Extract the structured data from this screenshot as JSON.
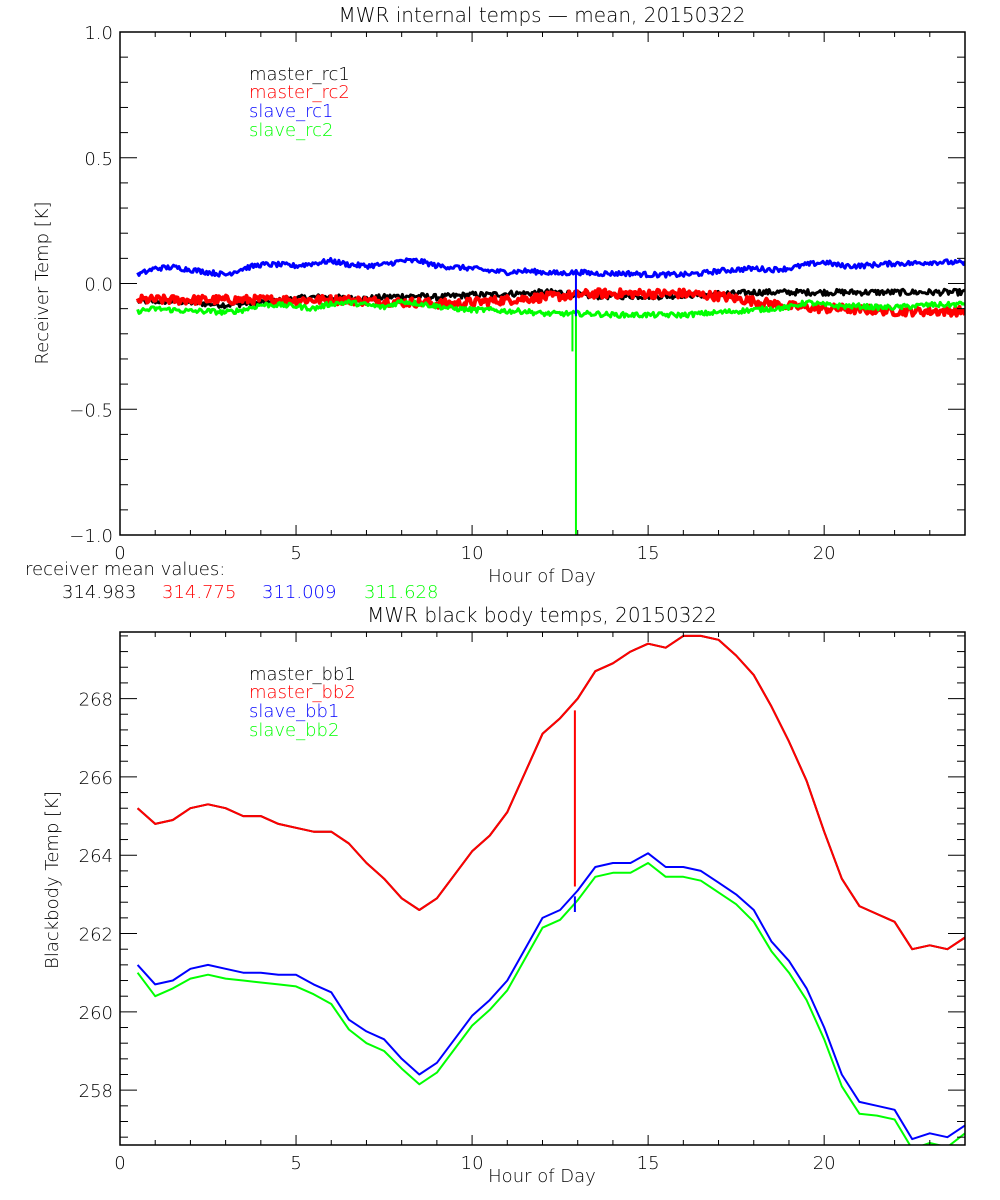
{
  "chart_data": [
    {
      "type": "line",
      "title": "MWR internal temps — mean, 20150322",
      "xlabel": "Hour of Day",
      "ylabel": "Receiver Temp [K]",
      "xlim": [
        0,
        24
      ],
      "ylim": [
        -1.0,
        1.0
      ],
      "xticks": [
        0,
        5,
        10,
        15,
        20
      ],
      "xtick_labels": [
        "0",
        "5",
        "10",
        "15",
        "20"
      ],
      "yticks": [
        -1.0,
        -0.5,
        0.0,
        0.5,
        1.0
      ],
      "ytick_labels": [
        "−1.0",
        "−0.5",
        "0.0",
        "0.5",
        "1.0"
      ],
      "grid": false,
      "legend_position": "top-left",
      "noisy": true,
      "x": [
        0.5,
        1.0,
        1.5,
        2.0,
        2.5,
        3.0,
        3.5,
        4.0,
        4.5,
        5.0,
        5.5,
        6.0,
        6.5,
        7.0,
        7.5,
        8.0,
        8.5,
        9.0,
        9.5,
        10.0,
        10.5,
        11.0,
        11.5,
        12.0,
        12.5,
        13.0,
        13.5,
        14.0,
        14.5,
        15.0,
        15.5,
        16.0,
        16.5,
        17.0,
        17.5,
        18.0,
        18.5,
        19.0,
        19.5,
        20.0,
        20.5,
        21.0,
        21.5,
        22.0,
        22.5,
        23.0,
        23.5,
        24.0
      ],
      "series": [
        {
          "name": "master_rc1",
          "color": "#000000",
          "values": [
            -0.07,
            -0.07,
            -0.07,
            -0.075,
            -0.08,
            -0.085,
            -0.08,
            -0.075,
            -0.07,
            -0.06,
            -0.055,
            -0.055,
            -0.06,
            -0.06,
            -0.055,
            -0.05,
            -0.05,
            -0.055,
            -0.05,
            -0.045,
            -0.045,
            -0.04,
            -0.04,
            -0.035,
            -0.035,
            -0.045,
            -0.05,
            -0.05,
            -0.05,
            -0.05,
            -0.05,
            -0.045,
            -0.045,
            -0.04,
            -0.04,
            -0.035,
            -0.035,
            -0.035,
            -0.035,
            -0.035,
            -0.035,
            -0.035,
            -0.035,
            -0.035,
            -0.035,
            -0.035,
            -0.035,
            -0.035
          ]
        },
        {
          "name": "master_rc2",
          "color": "#ff0000",
          "values": [
            -0.065,
            -0.065,
            -0.065,
            -0.065,
            -0.065,
            -0.065,
            -0.065,
            -0.065,
            -0.065,
            -0.065,
            -0.065,
            -0.065,
            -0.065,
            -0.07,
            -0.07,
            -0.075,
            -0.075,
            -0.08,
            -0.08,
            -0.075,
            -0.07,
            -0.065,
            -0.06,
            -0.055,
            -0.05,
            -0.045,
            -0.04,
            -0.04,
            -0.04,
            -0.04,
            -0.04,
            -0.04,
            -0.045,
            -0.05,
            -0.06,
            -0.07,
            -0.08,
            -0.09,
            -0.095,
            -0.1,
            -0.1,
            -0.105,
            -0.105,
            -0.11,
            -0.11,
            -0.11,
            -0.11,
            -0.11
          ]
        },
        {
          "name": "slave_rc1",
          "color": "#0000ff",
          "values": [
            0.035,
            0.06,
            0.065,
            0.055,
            0.045,
            0.035,
            0.06,
            0.075,
            0.075,
            0.07,
            0.08,
            0.09,
            0.075,
            0.07,
            0.075,
            0.09,
            0.09,
            0.07,
            0.065,
            0.06,
            0.05,
            0.045,
            0.05,
            0.045,
            0.04,
            0.045,
            0.04,
            0.04,
            0.04,
            0.035,
            0.035,
            0.035,
            0.04,
            0.05,
            0.055,
            0.06,
            0.055,
            0.06,
            0.075,
            0.085,
            0.07,
            0.07,
            0.075,
            0.08,
            0.08,
            0.085,
            0.085,
            0.08
          ]
        },
        {
          "name": "slave_rc2",
          "color": "#00ff00",
          "values": [
            -0.11,
            -0.1,
            -0.105,
            -0.11,
            -0.11,
            -0.115,
            -0.105,
            -0.085,
            -0.085,
            -0.09,
            -0.1,
            -0.08,
            -0.075,
            -0.085,
            -0.095,
            -0.07,
            -0.08,
            -0.09,
            -0.1,
            -0.105,
            -0.105,
            -0.11,
            -0.11,
            -0.12,
            -0.12,
            -0.12,
            -0.12,
            -0.125,
            -0.125,
            -0.125,
            -0.125,
            -0.125,
            -0.12,
            -0.115,
            -0.11,
            -0.105,
            -0.1,
            -0.095,
            -0.075,
            -0.085,
            -0.09,
            -0.09,
            -0.095,
            -0.095,
            -0.09,
            -0.085,
            -0.085,
            -0.08
          ]
        }
      ],
      "spikes": [
        {
          "series": "slave_rc2",
          "x": 12.85,
          "to": -0.27
        },
        {
          "series": "slave_rc2",
          "x": 12.95,
          "to": -1.0
        },
        {
          "series": "slave_rc1",
          "x": 12.95,
          "to": -0.13
        }
      ],
      "footer": {
        "label": "receiver mean values:",
        "values": [
          {
            "series": "master_rc1",
            "value": "314.983",
            "color": "#000000"
          },
          {
            "series": "master_rc2",
            "value": "314.775",
            "color": "#ff0000"
          },
          {
            "series": "slave_rc1",
            "value": "311.009",
            "color": "#0000ff"
          },
          {
            "series": "slave_rc2",
            "value": "311.628",
            "color": "#00ff00"
          }
        ]
      }
    },
    {
      "type": "line",
      "title": "MWR black body temps, 20150322",
      "xlabel": "Hour of Day",
      "ylabel": "Blackbody Temp [K]",
      "xlim": [
        0,
        24
      ],
      "ylim": [
        256.6,
        269.7
      ],
      "xticks": [
        0,
        5,
        10,
        15,
        20
      ],
      "xtick_labels": [
        "0",
        "5",
        "10",
        "15",
        "20"
      ],
      "yticks": [
        258,
        260,
        262,
        264,
        266,
        268
      ],
      "ytick_labels": [
        "258",
        "260",
        "262",
        "264",
        "266",
        "268"
      ],
      "grid": false,
      "legend_position": "top-left",
      "x": [
        0.5,
        1.0,
        1.5,
        2.0,
        2.5,
        3.0,
        3.5,
        4.0,
        4.5,
        5.0,
        5.5,
        6.0,
        6.5,
        7.0,
        7.5,
        8.0,
        8.5,
        9.0,
        9.5,
        10.0,
        10.5,
        11.0,
        11.5,
        12.0,
        12.5,
        13.0,
        13.5,
        14.0,
        14.5,
        15.0,
        15.5,
        16.0,
        16.5,
        17.0,
        17.5,
        18.0,
        18.5,
        19.0,
        19.5,
        20.0,
        20.5,
        21.0,
        21.5,
        22.0,
        22.5,
        23.0,
        23.5,
        24.0
      ],
      "series": [
        {
          "name": "master_bb1",
          "color": "#000000",
          "values": [
            265.2,
            264.8,
            264.9,
            265.2,
            265.3,
            265.2,
            265.0,
            265.0,
            264.8,
            264.7,
            264.6,
            264.6,
            264.3,
            263.8,
            263.4,
            262.9,
            262.6,
            262.9,
            263.5,
            264.1,
            264.5,
            265.1,
            266.1,
            267.1,
            267.5,
            268.0,
            268.7,
            268.9,
            269.2,
            269.4,
            269.3,
            269.6,
            269.6,
            269.5,
            269.1,
            268.6,
            267.8,
            266.9,
            265.9,
            264.6,
            263.4,
            262.7,
            262.5,
            262.3,
            261.6,
            261.7,
            261.6,
            261.9
          ]
        },
        {
          "name": "master_bb2",
          "color": "#ff0000",
          "values": [
            265.2,
            264.8,
            264.9,
            265.2,
            265.3,
            265.2,
            265.0,
            265.0,
            264.8,
            264.7,
            264.6,
            264.6,
            264.3,
            263.8,
            263.4,
            262.9,
            262.6,
            262.9,
            263.5,
            264.1,
            264.5,
            265.1,
            266.1,
            267.1,
            267.5,
            268.0,
            268.7,
            268.9,
            269.2,
            269.4,
            269.3,
            269.6,
            269.6,
            269.5,
            269.1,
            268.6,
            267.8,
            266.9,
            265.9,
            264.6,
            263.4,
            262.7,
            262.5,
            262.3,
            261.6,
            261.7,
            261.6,
            261.9
          ]
        },
        {
          "name": "slave_bb1",
          "color": "#0000ff",
          "values": [
            261.2,
            260.7,
            260.8,
            261.1,
            261.2,
            261.1,
            261.0,
            261.0,
            260.95,
            260.95,
            260.7,
            260.5,
            259.8,
            259.5,
            259.3,
            258.8,
            258.4,
            258.7,
            259.3,
            259.9,
            260.3,
            260.8,
            261.6,
            262.4,
            262.6,
            263.1,
            263.7,
            263.8,
            263.8,
            264.05,
            263.7,
            263.7,
            263.6,
            263.3,
            263.0,
            262.6,
            261.8,
            261.3,
            260.6,
            259.6,
            258.4,
            257.7,
            257.6,
            257.5,
            256.75,
            256.9,
            256.8,
            257.1
          ]
        },
        {
          "name": "slave_bb2",
          "color": "#00ff00",
          "values": [
            261.0,
            260.4,
            260.6,
            260.85,
            260.95,
            260.85,
            260.8,
            260.75,
            260.7,
            260.65,
            260.45,
            260.2,
            259.55,
            259.2,
            259.0,
            258.55,
            258.15,
            258.45,
            259.05,
            259.65,
            260.05,
            260.55,
            261.35,
            262.15,
            262.35,
            262.85,
            263.45,
            263.55,
            263.55,
            263.8,
            263.45,
            263.45,
            263.35,
            263.05,
            262.75,
            262.3,
            261.55,
            261.0,
            260.3,
            259.3,
            258.1,
            257.4,
            257.35,
            257.25,
            256.5,
            256.65,
            256.55,
            256.9
          ]
        }
      ],
      "spikes": [
        {
          "series": "master_bb2",
          "x": 12.92,
          "from": 267.7,
          "to": 263.2
        },
        {
          "series": "slave_bb1",
          "x": 12.92,
          "from": 262.95,
          "to": 262.55
        }
      ]
    }
  ]
}
